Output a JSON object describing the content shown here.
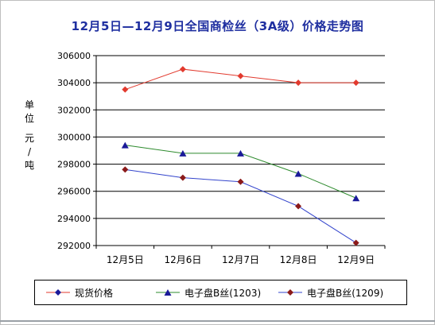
{
  "chart_data": {
    "type": "line",
    "title": "12月5日—12月9日全国商检丝（3A级）价格走势图",
    "ylabel": [
      "单",
      "位",
      "元",
      "/",
      "吨"
    ],
    "categories": [
      "12月5日",
      "12月6日",
      "12月7日",
      "12月8日",
      "12月9日"
    ],
    "yticks": [
      "292000",
      "294000",
      "296000",
      "298000",
      "300000",
      "302000",
      "304000",
      "306000"
    ],
    "ylim": [
      292000,
      306000
    ],
    "grid": true,
    "legend_position": "bottom",
    "series": [
      {
        "name": "现货价格",
        "values": [
          303500,
          305000,
          304500,
          304000,
          304000
        ],
        "color": "#e23a2e",
        "marker": "diamond",
        "line_color": "#e23a2e"
      },
      {
        "name": "电子盘B丝(1203)",
        "values": [
          299400,
          298800,
          298800,
          297300,
          295500
        ],
        "color": "#1a1a99",
        "marker": "triangle",
        "line_color": "#2e8b2e"
      },
      {
        "name": "电子盘B丝(1209)",
        "values": [
          297600,
          297000,
          296700,
          294900,
          292200
        ],
        "color": "#8b1a1a",
        "marker": "diamond",
        "line_color": "#3344cc"
      }
    ]
  }
}
